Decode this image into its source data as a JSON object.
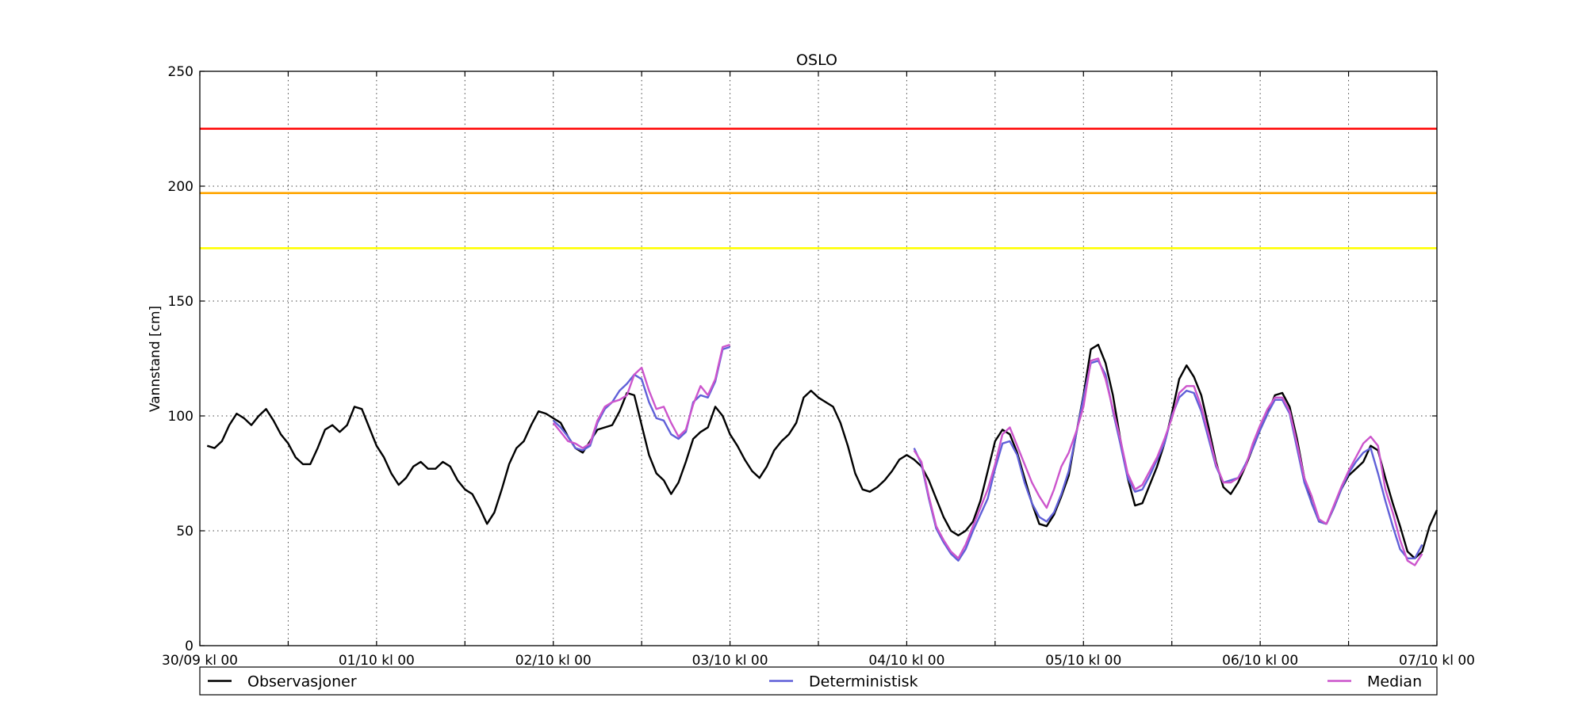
{
  "chart_data": {
    "type": "line",
    "title": "OSLO",
    "xlabel": "",
    "ylabel": "Vannstand [cm]",
    "ylim": [
      0,
      250
    ],
    "yticks": [
      0,
      50,
      100,
      150,
      200,
      250
    ],
    "x_unit": "hours from 30/09 kl 00",
    "xlim": [
      0,
      168
    ],
    "xticks": [
      {
        "hour": 0,
        "label": "30/09 kl 00"
      },
      {
        "hour": 24,
        "label": "01/10 kl 00"
      },
      {
        "hour": 48,
        "label": "02/10 kl 00"
      },
      {
        "hour": 72,
        "label": "03/10 kl 00"
      },
      {
        "hour": 96,
        "label": "04/10 kl 00"
      },
      {
        "hour": 120,
        "label": "05/10 kl 00"
      },
      {
        "hour": 144,
        "label": "06/10 kl 00"
      },
      {
        "hour": 168,
        "label": "07/10 kl 00"
      }
    ],
    "grid_vlines_hours": [
      12,
      24,
      36,
      48,
      60,
      72,
      84,
      96,
      108,
      120,
      132,
      144,
      156
    ],
    "grid": true,
    "thresholds": [
      {
        "value": 225,
        "color": "#ff0000"
      },
      {
        "value": 197,
        "color": "#ffa500"
      },
      {
        "value": 173,
        "color": "#ffff00"
      }
    ],
    "legend_placement": "bottom",
    "series": [
      {
        "name": "Observasjoner",
        "color": "#000000",
        "x_start": 1,
        "x_step": 1,
        "values": [
          87,
          86,
          89,
          96,
          101,
          99,
          96,
          100,
          103,
          98,
          92,
          88,
          82,
          79,
          79,
          86,
          94,
          96,
          93,
          96,
          104,
          103,
          95,
          87,
          82,
          75,
          70,
          73,
          78,
          80,
          77,
          77,
          80,
          78,
          72,
          68,
          66,
          60,
          53,
          58,
          68,
          79,
          86,
          89,
          96,
          102,
          101,
          99,
          97,
          91,
          86,
          84,
          89,
          94,
          95,
          96,
          102,
          110,
          109,
          96,
          83,
          75,
          72,
          66,
          71,
          80,
          90,
          93,
          95,
          104,
          100,
          92,
          87,
          81,
          76,
          73,
          78,
          85,
          89,
          92,
          97,
          108,
          111,
          108,
          106,
          104,
          97,
          87,
          75,
          68,
          67,
          69,
          72,
          76,
          81,
          83,
          81,
          78,
          72,
          64,
          56,
          50,
          48,
          50,
          54,
          63,
          76,
          89,
          94,
          92,
          84,
          73,
          62,
          53,
          52,
          57,
          65,
          74,
          92,
          109,
          129,
          131,
          123,
          109,
          90,
          73,
          61,
          62,
          70,
          78,
          88,
          101,
          116,
          122,
          117,
          109,
          95,
          80,
          69,
          66,
          71,
          78,
          86,
          94,
          101,
          109,
          110,
          104,
          90,
          73,
          62,
          54,
          53,
          60,
          68,
          74,
          77,
          80,
          87,
          85,
          73,
          62,
          52,
          41,
          38,
          41,
          52,
          59
        ]
      },
      {
        "name": "Deterministisk",
        "color": "#6060d8",
        "segments": [
          {
            "x_start": 48,
            "x_step": 1,
            "values": [
              98,
              95,
              91,
              86,
              85,
              87,
              97,
              103,
              106,
              111,
              114,
              118,
              116,
              106,
              99,
              98,
              92,
              90,
              93,
              106,
              109,
              108,
              115,
              129,
              130
            ]
          },
          {
            "x_start": 97,
            "x_step": 1,
            "values": [
              86,
              79,
              64,
              51,
              45,
              40,
              37,
              42,
              50,
              57,
              64,
              77,
              88,
              89,
              83,
              71,
              62,
              56,
              54,
              58,
              66,
              76,
              92,
              108,
              123,
              124,
              118,
              102,
              88,
              73,
              67,
              68,
              74,
              81,
              88,
              100,
              108,
              111,
              110,
              102,
              90,
              78,
              71,
              72,
              73,
              79,
              86,
              94,
              101,
              107,
              107,
              101,
              86,
              71,
              62,
              54,
              53,
              60,
              68,
              75,
              80,
              84,
              86,
              75,
              63,
              52,
              42,
              38,
              38,
              44
            ]
          }
        ]
      },
      {
        "name": "Median",
        "color": "#cc55cc",
        "segments": [
          {
            "x_start": 48,
            "x_step": 1,
            "values": [
              97,
              93,
              89,
              88,
              86,
              88,
              98,
              104,
              106,
              107,
              109,
              118,
              121,
              111,
              103,
              104,
              97,
              91,
              94,
              105,
              113,
              109,
              116,
              130,
              131
            ]
          },
          {
            "x_start": 97,
            "x_step": 1,
            "values": [
              85,
              80,
              65,
              52,
              46,
              41,
              38,
              44,
              52,
              60,
              68,
              79,
              92,
              95,
              87,
              79,
              71,
              65,
              60,
              68,
              78,
              84,
              93,
              104,
              124,
              125,
              116,
              103,
              90,
              75,
              68,
              70,
              76,
              82,
              90,
              99,
              110,
              113,
              113,
              104,
              92,
              79,
              71,
              71,
              73,
              78,
              88,
              96,
              103,
              108,
              108,
              102,
              88,
              73,
              65,
              55,
              53,
              61,
              69,
              76,
              82,
              88,
              91,
              87,
              68,
              58,
              46,
              37,
              35,
              40
            ]
          }
        ]
      }
    ]
  }
}
